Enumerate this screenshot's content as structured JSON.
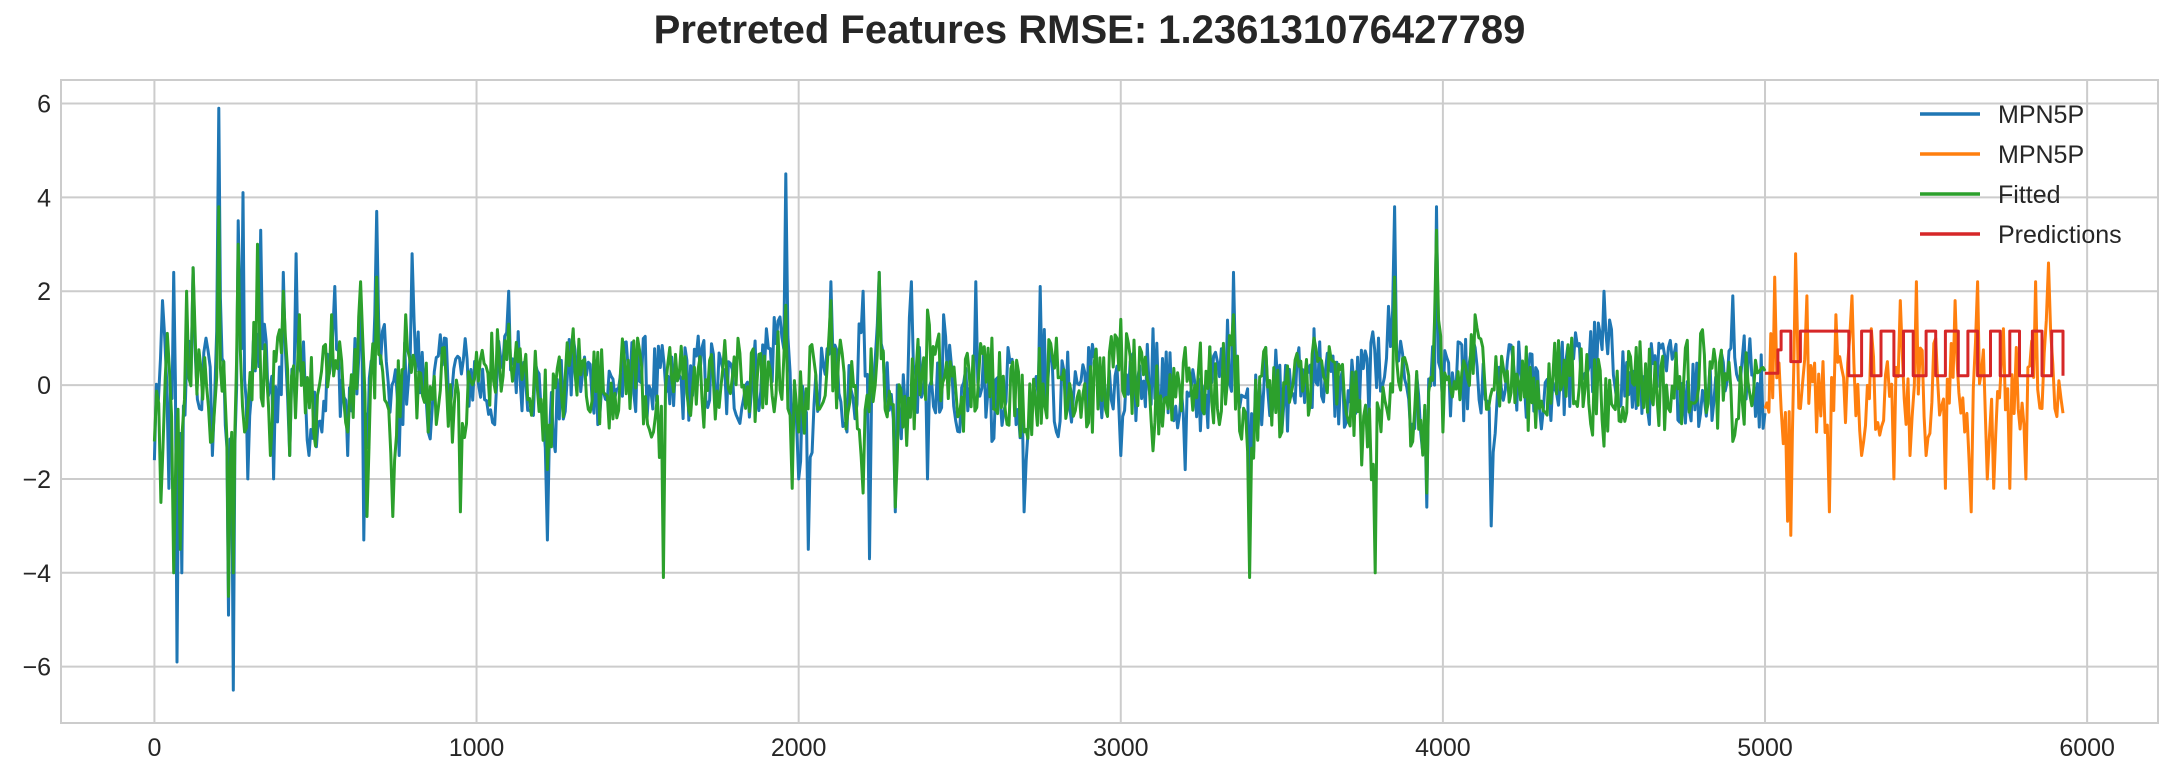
{
  "chart_data": {
    "type": "line",
    "title": "Pretreted Features RMSE: 1.236131076427789",
    "xlabel": "",
    "ylabel": "",
    "xlim": [
      -290,
      6220
    ],
    "ylim": [
      -7.2,
      6.5
    ],
    "x_ticks": [
      0,
      1000,
      2000,
      3000,
      4000,
      5000,
      6000
    ],
    "y_ticks": [
      -6,
      -4,
      -2,
      0,
      2,
      4,
      6
    ],
    "grid": true,
    "legend_position": "top-right",
    "series": [
      {
        "name": "MPN5P",
        "color": "#1f77b4",
        "x_range": [
          0,
          5000
        ],
        "points": [
          [
            0,
            -1.6
          ],
          [
            25,
            1.8
          ],
          [
            45,
            -2.2
          ],
          [
            60,
            2.4
          ],
          [
            70,
            -5.9
          ],
          [
            85,
            -4.0
          ],
          [
            100,
            0.5
          ],
          [
            120,
            2.5
          ],
          [
            140,
            -0.5
          ],
          [
            160,
            1.0
          ],
          [
            180,
            -1.5
          ],
          [
            200,
            5.9
          ],
          [
            215,
            0.5
          ],
          [
            230,
            -4.9
          ],
          [
            245,
            -6.5
          ],
          [
            260,
            3.5
          ],
          [
            275,
            4.1
          ],
          [
            290,
            -2.0
          ],
          [
            330,
            3.3
          ],
          [
            370,
            -2.0
          ],
          [
            400,
            2.4
          ],
          [
            420,
            -1.5
          ],
          [
            440,
            2.8
          ],
          [
            480,
            -1.5
          ],
          [
            520,
            -1.0
          ],
          [
            560,
            2.1
          ],
          [
            600,
            -1.5
          ],
          [
            640,
            2.0
          ],
          [
            650,
            -3.3
          ],
          [
            690,
            3.7
          ],
          [
            720,
            0.5
          ],
          [
            760,
            -1.5
          ],
          [
            800,
            2.8
          ],
          [
            850,
            -1.0
          ],
          [
            900,
            1.0
          ],
          [
            1000,
            0.5
          ],
          [
            1050,
            -0.8
          ],
          [
            1100,
            2.0
          ],
          [
            1200,
            -0.5
          ],
          [
            1220,
            -3.3
          ],
          [
            1300,
            1.0
          ],
          [
            1400,
            -0.3
          ],
          [
            1500,
            0.8
          ],
          [
            1600,
            -0.4
          ],
          [
            1700,
            0.8
          ],
          [
            1800,
            -0.5
          ],
          [
            1900,
            1.2
          ],
          [
            1960,
            4.5
          ],
          [
            1980,
            -1.5
          ],
          [
            2000,
            -2.0
          ],
          [
            2030,
            -3.5
          ],
          [
            2100,
            2.2
          ],
          [
            2150,
            -1.0
          ],
          [
            2200,
            2.0
          ],
          [
            2220,
            -3.7
          ],
          [
            2250,
            2.4
          ],
          [
            2300,
            -2.7
          ],
          [
            2350,
            2.2
          ],
          [
            2400,
            -2.0
          ],
          [
            2450,
            1.5
          ],
          [
            2500,
            -1.0
          ],
          [
            2550,
            2.2
          ],
          [
            2600,
            -1.2
          ],
          [
            2650,
            0.8
          ],
          [
            2700,
            -2.7
          ],
          [
            2750,
            2.1
          ],
          [
            2800,
            -1.0
          ],
          [
            2900,
            0.8
          ],
          [
            3000,
            -1.5
          ],
          [
            3100,
            1.2
          ],
          [
            3200,
            -1.8
          ],
          [
            3300,
            0.5
          ],
          [
            3350,
            2.4
          ],
          [
            3400,
            -2.3
          ],
          [
            3450,
            0.8
          ],
          [
            3500,
            -1.0
          ],
          [
            3600,
            1.2
          ],
          [
            3700,
            -0.8
          ],
          [
            3800,
            1.0
          ],
          [
            3850,
            3.8
          ],
          [
            3900,
            -1.0
          ],
          [
            3950,
            -2.6
          ],
          [
            3980,
            3.8
          ],
          [
            4000,
            -0.5
          ],
          [
            4100,
            0.8
          ],
          [
            4150,
            -3.0
          ],
          [
            4200,
            0.5
          ],
          [
            4300,
            -0.5
          ],
          [
            4400,
            0.8
          ],
          [
            4500,
            2.0
          ],
          [
            4600,
            -0.5
          ],
          [
            4700,
            0.8
          ],
          [
            4800,
            -0.6
          ],
          [
            4900,
            1.9
          ],
          [
            5000,
            -0.6
          ]
        ]
      },
      {
        "name": "MPN5P",
        "color": "#ff7f0e",
        "x_range": [
          5000,
          5925
        ],
        "points": [
          [
            5000,
            -0.5
          ],
          [
            5030,
            2.3
          ],
          [
            5050,
            -0.5
          ],
          [
            5070,
            -2.9
          ],
          [
            5080,
            -3.2
          ],
          [
            5095,
            2.8
          ],
          [
            5110,
            -0.5
          ],
          [
            5130,
            1.9
          ],
          [
            5160,
            -1.0
          ],
          [
            5180,
            0.5
          ],
          [
            5200,
            -2.7
          ],
          [
            5220,
            1.5
          ],
          [
            5250,
            -0.8
          ],
          [
            5270,
            1.9
          ],
          [
            5300,
            -1.5
          ],
          [
            5330,
            1.2
          ],
          [
            5350,
            -0.8
          ],
          [
            5380,
            0.5
          ],
          [
            5400,
            -2.0
          ],
          [
            5420,
            1.8
          ],
          [
            5450,
            -1.5
          ],
          [
            5470,
            2.2
          ],
          [
            5500,
            -1.5
          ],
          [
            5530,
            1.0
          ],
          [
            5560,
            -2.2
          ],
          [
            5590,
            1.8
          ],
          [
            5620,
            -1.0
          ],
          [
            5640,
            -2.7
          ],
          [
            5660,
            2.2
          ],
          [
            5690,
            -2.0
          ],
          [
            5710,
            -2.2
          ],
          [
            5740,
            1.2
          ],
          [
            5760,
            -2.2
          ],
          [
            5780,
            0.8
          ],
          [
            5810,
            -2.0
          ],
          [
            5840,
            2.2
          ],
          [
            5860,
            -0.5
          ],
          [
            5880,
            2.6
          ],
          [
            5900,
            -0.5
          ],
          [
            5925,
            -0.6
          ]
        ]
      },
      {
        "name": "Fitted",
        "color": "#2ca02c",
        "x_range": [
          0,
          5000
        ],
        "points": [
          [
            0,
            -1.2
          ],
          [
            20,
            -2.5
          ],
          [
            40,
            1.1
          ],
          [
            60,
            -4.0
          ],
          [
            80,
            -3.5
          ],
          [
            100,
            2.0
          ],
          [
            120,
            2.5
          ],
          [
            150,
            -0.3
          ],
          [
            180,
            -1.2
          ],
          [
            200,
            3.8
          ],
          [
            215,
            0.5
          ],
          [
            230,
            -4.5
          ],
          [
            245,
            -4.0
          ],
          [
            260,
            3.0
          ],
          [
            280,
            -1.0
          ],
          [
            320,
            3.0
          ],
          [
            360,
            -1.5
          ],
          [
            400,
            2.0
          ],
          [
            420,
            -1.5
          ],
          [
            450,
            1.5
          ],
          [
            500,
            -1.3
          ],
          [
            550,
            1.5
          ],
          [
            600,
            -1.0
          ],
          [
            640,
            2.2
          ],
          [
            660,
            -2.8
          ],
          [
            690,
            2.3
          ],
          [
            740,
            -2.8
          ],
          [
            780,
            1.5
          ],
          [
            850,
            -1.0
          ],
          [
            900,
            0.8
          ],
          [
            950,
            -2.7
          ],
          [
            1000,
            0.7
          ],
          [
            1100,
            1.3
          ],
          [
            1200,
            -0.3
          ],
          [
            1220,
            -1.8
          ],
          [
            1300,
            1.2
          ],
          [
            1400,
            -0.2
          ],
          [
            1500,
            1.0
          ],
          [
            1580,
            -4.1
          ],
          [
            1600,
            0.8
          ],
          [
            1700,
            -0.3
          ],
          [
            1800,
            0.6
          ],
          [
            1900,
            -0.4
          ],
          [
            1960,
            1.7
          ],
          [
            1980,
            -2.2
          ],
          [
            2000,
            -1.0
          ],
          [
            2100,
            1.8
          ],
          [
            2200,
            -2.3
          ],
          [
            2250,
            2.4
          ],
          [
            2300,
            -2.6
          ],
          [
            2400,
            1.6
          ],
          [
            2500,
            -0.6
          ],
          [
            2600,
            1.0
          ],
          [
            2700,
            -1.0
          ],
          [
            2800,
            1.0
          ],
          [
            2900,
            -0.8
          ],
          [
            3000,
            1.4
          ],
          [
            3100,
            -1.4
          ],
          [
            3200,
            0.8
          ],
          [
            3300,
            -0.5
          ],
          [
            3350,
            1.5
          ],
          [
            3400,
            -4.1
          ],
          [
            3450,
            0.8
          ],
          [
            3500,
            -1.0
          ],
          [
            3600,
            1.0
          ],
          [
            3700,
            -0.6
          ],
          [
            3790,
            -4.0
          ],
          [
            3850,
            2.3
          ],
          [
            3900,
            -1.3
          ],
          [
            3950,
            -2.3
          ],
          [
            3980,
            3.3
          ],
          [
            4000,
            -1.0
          ],
          [
            4100,
            1.5
          ],
          [
            4200,
            0.3
          ],
          [
            4300,
            -0.5
          ],
          [
            4400,
            1.0
          ],
          [
            4500,
            -1.3
          ],
          [
            4600,
            0.8
          ],
          [
            4700,
            -0.5
          ],
          [
            4800,
            1.1
          ],
          [
            4900,
            -1.2
          ],
          [
            5000,
            0.3
          ]
        ]
      },
      {
        "name": "Predictions",
        "color": "#d62728",
        "x_range": [
          5000,
          5925
        ],
        "points": [
          [
            5000,
            0.25
          ],
          [
            5040,
            0.75
          ],
          [
            5050,
            1.15
          ],
          [
            5080,
            0.5
          ],
          [
            5110,
            1.15
          ],
          [
            5260,
            0.2
          ],
          [
            5300,
            1.15
          ],
          [
            5330,
            0.2
          ],
          [
            5360,
            1.15
          ],
          [
            5400,
            0.2
          ],
          [
            5430,
            1.15
          ],
          [
            5460,
            0.2
          ],
          [
            5500,
            1.15
          ],
          [
            5530,
            0.2
          ],
          [
            5560,
            1.15
          ],
          [
            5600,
            0.2
          ],
          [
            5630,
            1.15
          ],
          [
            5660,
            0.2
          ],
          [
            5700,
            1.15
          ],
          [
            5730,
            0.2
          ],
          [
            5760,
            1.15
          ],
          [
            5790,
            0.2
          ],
          [
            5830,
            1.15
          ],
          [
            5860,
            0.2
          ],
          [
            5890,
            1.15
          ],
          [
            5925,
            0.2
          ]
        ]
      }
    ]
  }
}
